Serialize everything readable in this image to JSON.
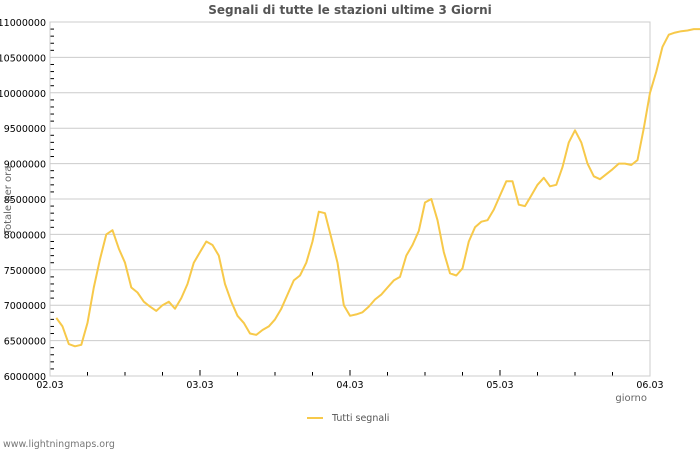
{
  "chart": {
    "title": "Segnali di tutte le stazioni ultime 3 Giorni",
    "ylabel": "Totale per ora",
    "xlabel": "giorno",
    "legend_label": "Tutti segnali",
    "footer": "www.lightningmaps.org",
    "line_color": "#f7c94a",
    "grid_color": "#cccccc"
  },
  "chart_data": {
    "type": "line",
    "title": "Segnali di tutte le stazioni ultime 3 Giorni",
    "xlabel": "giorno",
    "ylabel": "Totale per ora",
    "x_tick_labels": [
      "02.03",
      "03.03",
      "04.03",
      "05.03",
      "06.03"
    ],
    "y_tick_labels": [
      "6000000",
      "6500000",
      "7000000",
      "7500000",
      "8000000",
      "8500000",
      "9000000",
      "9500000",
      "10000000",
      "10500000",
      "11000000"
    ],
    "ylim": [
      6000000,
      11000000
    ],
    "xlim_days": [
      0,
      4
    ],
    "grid": true,
    "legend_position": "bottom",
    "series": [
      {
        "name": "Tutti segnali",
        "x_hours": [
          1,
          2,
          3,
          4,
          5,
          6,
          7,
          8,
          9,
          10,
          11,
          12,
          13,
          14,
          15,
          16,
          17,
          18,
          19,
          20,
          21,
          22,
          23,
          24,
          25,
          26,
          27,
          28,
          29,
          30,
          31,
          32,
          33,
          34,
          35,
          36,
          37,
          38,
          39,
          40,
          41,
          42,
          43,
          44,
          45,
          46,
          47,
          48,
          49,
          50,
          51,
          52,
          53,
          54,
          55,
          56,
          57,
          58,
          59,
          60,
          61,
          62,
          63,
          64,
          65,
          66,
          67,
          68,
          69,
          70,
          71,
          72,
          73,
          74,
          75
        ],
        "values": [
          6820000,
          6700000,
          6450000,
          6420000,
          6440000,
          6750000,
          7250000,
          7650000,
          8000000,
          8060000,
          7800000,
          7600000,
          7250000,
          7180000,
          7050000,
          6980000,
          6920000,
          7000000,
          7050000,
          6950000,
          7100000,
          7300000,
          7600000,
          7750000,
          7900000,
          7850000,
          7700000,
          7300000,
          7050000,
          6850000,
          6750000,
          6600000,
          6580000,
          6650000,
          6700000,
          6800000,
          6950000,
          7150000,
          7350000,
          7420000,
          7600000,
          7900000,
          8320000,
          8300000,
          7950000,
          7600000,
          7000000,
          6850000,
          6870000,
          6900000,
          6980000,
          7080000,
          7150000,
          7250000,
          7350000,
          7400000,
          7700000,
          7850000,
          8050000,
          8450000,
          8500000,
          8200000,
          7750000,
          7450000,
          7420000,
          7520000,
          7900000,
          8100000,
          8180000,
          8200000,
          8350000,
          8550000,
          8750000,
          8750000,
          8420000
        ]
      }
    ],
    "series_tail": {
      "x_hours": [
        76,
        77,
        78,
        79,
        80,
        81,
        82,
        83,
        84,
        85,
        86,
        87,
        88,
        89,
        90,
        91,
        92,
        93,
        94,
        95,
        96,
        97,
        98,
        99,
        100,
        101,
        102,
        103,
        104,
        105,
        106,
        107
      ],
      "values": [
        8400000,
        8550000,
        8700000,
        8800000,
        8680000,
        8700000,
        8950000,
        9300000,
        9470000,
        9300000,
        9000000,
        8820000,
        8780000,
        8850000,
        8920000,
        9000000,
        9000000,
        8980000,
        9050000,
        9500000,
        10000000,
        10300000,
        10650000,
        10820000,
        10850000,
        10870000,
        10880000,
        10900000,
        10900000,
        10900000,
        10900000,
        10900000
      ]
    }
  }
}
